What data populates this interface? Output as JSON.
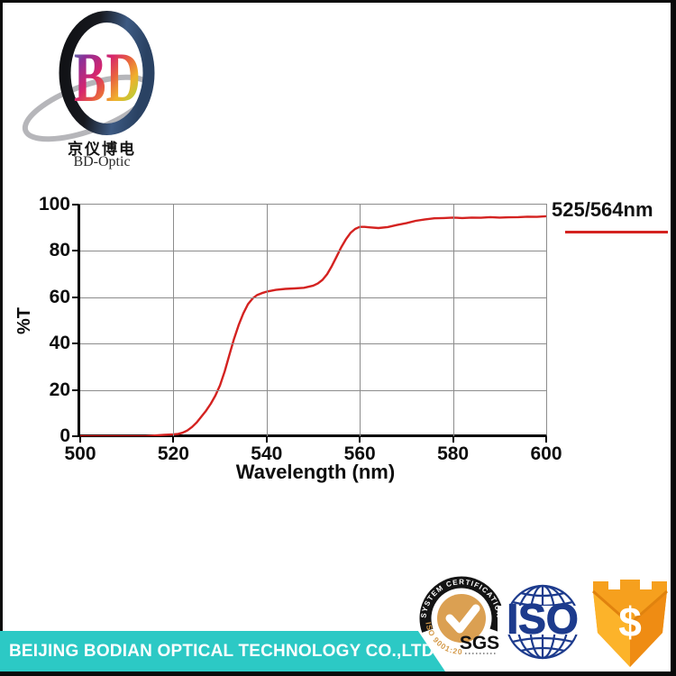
{
  "logo": {
    "letters": "BD",
    "chinese": "京仪博电",
    "latin": "BD-Optic"
  },
  "chart_data": {
    "type": "line",
    "title": "",
    "xlabel": "Wavelength (nm)",
    "ylabel": "%T",
    "xlim": [
      500,
      600
    ],
    "ylim": [
      0,
      100
    ],
    "x_ticks": [
      500,
      520,
      540,
      560,
      580,
      600
    ],
    "y_ticks": [
      0,
      20,
      40,
      60,
      80,
      100
    ],
    "grid": true,
    "legend": {
      "label": "525/564nm",
      "position": "outside-top-right"
    },
    "series": [
      {
        "name": "525/564nm",
        "color": "#d42220",
        "x": [
          500,
          505,
          510,
          514,
          516,
          518,
          520,
          521,
          522,
          523,
          524,
          525,
          526,
          527,
          528,
          529,
          530,
          531,
          532,
          533,
          534,
          535,
          536,
          537,
          538,
          539,
          540,
          542,
          544,
          546,
          548,
          550,
          551,
          552,
          553,
          554,
          555,
          556,
          557,
          558,
          559,
          560,
          561,
          562,
          564,
          566,
          568,
          570,
          572,
          574,
          576,
          578,
          580,
          582,
          584,
          586,
          588,
          590,
          592,
          594,
          596,
          598,
          600
        ],
        "y": [
          0,
          0,
          0,
          0,
          0.3,
          0.6,
          0.8,
          1,
          1.5,
          2.5,
          4,
          6,
          8.5,
          11,
          14,
          17.5,
          22,
          28,
          35,
          42,
          48,
          53,
          57,
          59.5,
          61,
          61.8,
          62.4,
          63.2,
          63.6,
          63.8,
          64.1,
          65,
          66,
          67.5,
          70,
          73.5,
          77.5,
          81.5,
          85,
          87.8,
          89.5,
          90.4,
          90.4,
          90.2,
          89.9,
          90.3,
          91.2,
          92,
          93,
          93.6,
          94.1,
          94.2,
          94.4,
          94.2,
          94.4,
          94.3,
          94.6,
          94.4,
          94.5,
          94.6,
          94.8,
          94.7,
          95
        ]
      }
    ]
  },
  "badges": {
    "sgs": {
      "arc_text": "SYSTEM CERTIFICATION",
      "ring_text": "ISO 9001:2000",
      "label": "SGS"
    },
    "iso": {
      "label": "ISO"
    },
    "shield": {
      "symbol": "$"
    }
  },
  "footer": {
    "company": "BEIJING BODIAN OPTICAL TECHNOLOGY CO.,LTD."
  },
  "colors": {
    "curve_red": "#d42220",
    "band_teal": "#2cc9c5",
    "iso_navy": "#1d3b8d",
    "shield_gold": "#f6a01e",
    "sgs_orange": "#dba052"
  }
}
